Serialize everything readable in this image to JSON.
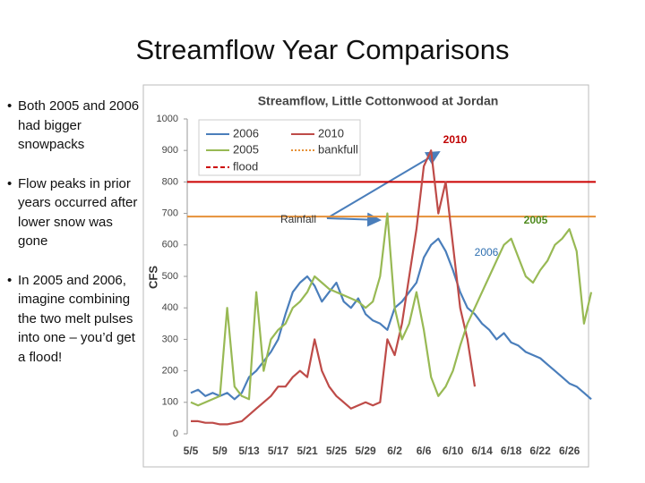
{
  "slide": {
    "title": "Streamflow Year Comparisons",
    "bullets": [
      "Both 2005 and 2006 had bigger snowpacks",
      "Flow peaks in prior years occurred after lower snow was gone",
      "In 2005 and 2006, imagine combining the two melt pulses into one – you’d get a flood!"
    ]
  },
  "chart_data": {
    "type": "line",
    "title": "Streamflow, Little Cottonwood at Jordan",
    "y_label": "CFS",
    "categories": [
      "5/5",
      null,
      null,
      null,
      "5/9",
      null,
      null,
      null,
      "5/13",
      null,
      null,
      null,
      "5/17",
      null,
      null,
      null,
      "5/21",
      null,
      null,
      null,
      "5/25",
      null,
      null,
      null,
      "5/29",
      null,
      null,
      null,
      "6/2",
      null,
      null,
      null,
      "6/6",
      null,
      null,
      null,
      "6/10",
      null,
      null,
      null,
      "6/14",
      null,
      null,
      null,
      "6/18",
      null,
      null,
      null,
      "6/22",
      null,
      null,
      null,
      "6/26",
      null,
      null,
      null
    ],
    "series": [
      {
        "name": "2006",
        "color": "#4a7ebb",
        "values": [
          130,
          140,
          120,
          130,
          120,
          130,
          110,
          130,
          180,
          200,
          230,
          260,
          300,
          380,
          450,
          480,
          500,
          470,
          420,
          450,
          480,
          420,
          400,
          430,
          380,
          360,
          350,
          330,
          400,
          420,
          450,
          480,
          560,
          600,
          620,
          580,
          520,
          450,
          400,
          380,
          350,
          330,
          300,
          320,
          290,
          280,
          260,
          250,
          240,
          220,
          200,
          180,
          160,
          150,
          130,
          110
        ]
      },
      {
        "name": "2010",
        "color": "#be4b48",
        "values": [
          40,
          40,
          35,
          35,
          30,
          30,
          35,
          40,
          60,
          80,
          100,
          120,
          150,
          150,
          180,
          200,
          180,
          300,
          200,
          150,
          120,
          100,
          80,
          90,
          100,
          90,
          100,
          300,
          250,
          350,
          500,
          650,
          850,
          900,
          700,
          800,
          600,
          400,
          300,
          150,
          null,
          null,
          null,
          null,
          null,
          null,
          null,
          null,
          null,
          null,
          null,
          null,
          null,
          null,
          null,
          null
        ]
      },
      {
        "name": "2005",
        "color": "#98b954",
        "values": [
          100,
          90,
          100,
          110,
          120,
          400,
          150,
          120,
          110,
          450,
          200,
          300,
          330,
          350,
          400,
          420,
          450,
          500,
          480,
          460,
          450,
          440,
          430,
          420,
          400,
          420,
          500,
          700,
          400,
          300,
          350,
          450,
          330,
          180,
          120,
          150,
          200,
          280,
          350,
          400,
          450,
          500,
          550,
          600,
          620,
          560,
          500,
          480,
          520,
          550,
          600,
          620,
          650,
          580,
          350,
          450
        ]
      }
    ],
    "reference_lines": [
      {
        "name": "bankfull",
        "value": 690,
        "color": "#e69138"
      },
      {
        "name": "flood",
        "value": 800,
        "color": "#cc0000"
      }
    ],
    "ylim": [
      0,
      1000
    ],
    "yticks": [
      0,
      100,
      200,
      300,
      400,
      500,
      600,
      700,
      800,
      900,
      1000
    ],
    "annotations": [
      {
        "text": "2010",
        "color": "#c00000"
      },
      {
        "text": "Rainfall",
        "color": "#333333"
      },
      {
        "text": "2005",
        "color": "#4e8a1e"
      },
      {
        "text": "2006",
        "color": "#2e6fb0"
      }
    ]
  }
}
